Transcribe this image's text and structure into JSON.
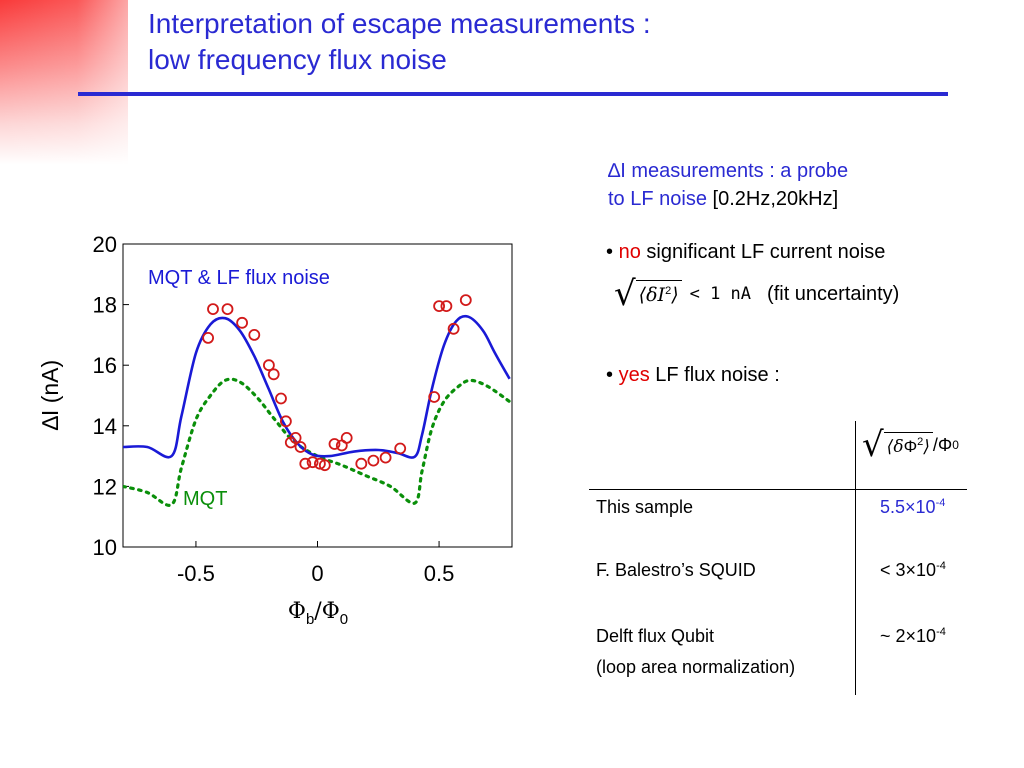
{
  "slide": {
    "title_line1": "Interpretation of escape measurements :",
    "title_line2": "low frequency flux noise"
  },
  "colors": {
    "title": "#2a2ad2",
    "accent_red": "#e00000",
    "mqt_green": "#0a8f0a",
    "lf_blue": "#1a1ad6",
    "marker_red": "#d21a1a"
  },
  "probe": {
    "delta_symbol": "∆",
    "line1_rest": "I measurements : a probe",
    "line2_blue": "to LF noise",
    "line2_black": "[0.2Hz,20kHz]"
  },
  "bullet_current": {
    "bullet": "•",
    "emph": "no",
    "rest": "significant LF current noise",
    "expr_delta": "δ",
    "expr_var": "I",
    "expr_exp": "2",
    "expr_lt": "< 1 nA",
    "note": "(fit uncertainty)"
  },
  "bullet_flux": {
    "bullet": "•",
    "emph": "yes",
    "rest": "LF flux noise :"
  },
  "table": {
    "header_delta": "δ",
    "header_phi": "Φ",
    "header_exp": "2",
    "header_div": "/Φ",
    "header_sub": "0",
    "rows": [
      {
        "label": "This sample",
        "mantissa": "5.5×10",
        "exp": "-4"
      },
      {
        "label": "F. Balestro’s  SQUID",
        "mantissa": "< 3×10",
        "exp": "-4"
      },
      {
        "label": "Delft flux Qubit",
        "label2": "(loop area normalization)",
        "mantissa": "~ 2×10",
        "exp": "-4"
      }
    ]
  },
  "chart_data": {
    "type": "line",
    "xlabel_main": "Φ",
    "xlabel_sub1": "b",
    "xlabel_div": "/Φ",
    "xlabel_sub2": "0",
    "ylabel": "∆I (nA)",
    "xlim": [
      -0.8,
      0.8
    ],
    "ylim": [
      10,
      20
    ],
    "xticks": [
      -0.5,
      0,
      0.5
    ],
    "xtick_labels": [
      "-0.5",
      "0",
      "0.5"
    ],
    "yticks": [
      10,
      12,
      14,
      16,
      18,
      20
    ],
    "ytick_labels": [
      "10",
      "12",
      "14",
      "16",
      "18",
      "20"
    ],
    "grid": false,
    "annotations": [
      {
        "text": "MQT & LF flux noise",
        "color": "#1a1ad6"
      },
      {
        "text": "MQT",
        "color": "#0a8f0a"
      }
    ],
    "series": [
      {
        "style": "solid",
        "color": "#1a1ad6",
        "x": [
          -0.8,
          -0.7,
          -0.6,
          -0.56,
          -0.5,
          -0.44,
          -0.38,
          -0.32,
          -0.26,
          -0.2,
          -0.14,
          -0.08,
          -0.02,
          0.05,
          0.15,
          0.25,
          0.33,
          0.4,
          0.43,
          0.47,
          0.52,
          0.57,
          0.62,
          0.68,
          0.73,
          0.79
        ],
        "y": [
          13.3,
          13.3,
          13.0,
          14.3,
          16.4,
          17.35,
          17.55,
          17.15,
          16.3,
          15.2,
          14.1,
          13.4,
          13.05,
          13.0,
          13.15,
          13.2,
          13.1,
          12.98,
          13.7,
          15.2,
          16.65,
          17.45,
          17.6,
          17.15,
          16.4,
          15.55
        ]
      },
      {
        "style": "dotted",
        "color": "#0a8f0a",
        "x": [
          -0.8,
          -0.7,
          -0.6,
          -0.56,
          -0.5,
          -0.44,
          -0.38,
          -0.32,
          -0.25,
          -0.18,
          -0.1,
          0.0,
          0.1,
          0.2,
          0.3,
          0.4,
          0.43,
          0.47,
          0.52,
          0.58,
          0.63,
          0.7,
          0.79
        ],
        "y": [
          12.0,
          11.8,
          11.4,
          12.6,
          14.2,
          15.0,
          15.5,
          15.45,
          14.95,
          14.25,
          13.5,
          13.0,
          12.7,
          12.35,
          12.0,
          11.45,
          12.5,
          13.9,
          14.8,
          15.3,
          15.5,
          15.3,
          14.8
        ]
      }
    ],
    "scatter": {
      "marker": "circle-open",
      "color": "#d21a1a",
      "x": [
        -0.45,
        -0.43,
        -0.37,
        -0.31,
        -0.26,
        -0.2,
        -0.18,
        -0.15,
        -0.13,
        -0.11,
        -0.09,
        -0.07,
        -0.05,
        -0.02,
        0.01,
        0.03,
        0.07,
        0.1,
        0.12,
        0.18,
        0.23,
        0.28,
        0.34,
        0.48,
        0.5,
        0.53,
        0.56,
        0.61
      ],
      "y": [
        16.9,
        17.85,
        17.85,
        17.4,
        17.0,
        16.0,
        15.7,
        14.9,
        14.15,
        13.45,
        13.6,
        13.3,
        12.75,
        12.8,
        12.75,
        12.7,
        13.4,
        13.35,
        13.6,
        12.75,
        12.85,
        12.95,
        13.25,
        14.95,
        17.95,
        17.95,
        17.2,
        18.15
      ]
    }
  }
}
